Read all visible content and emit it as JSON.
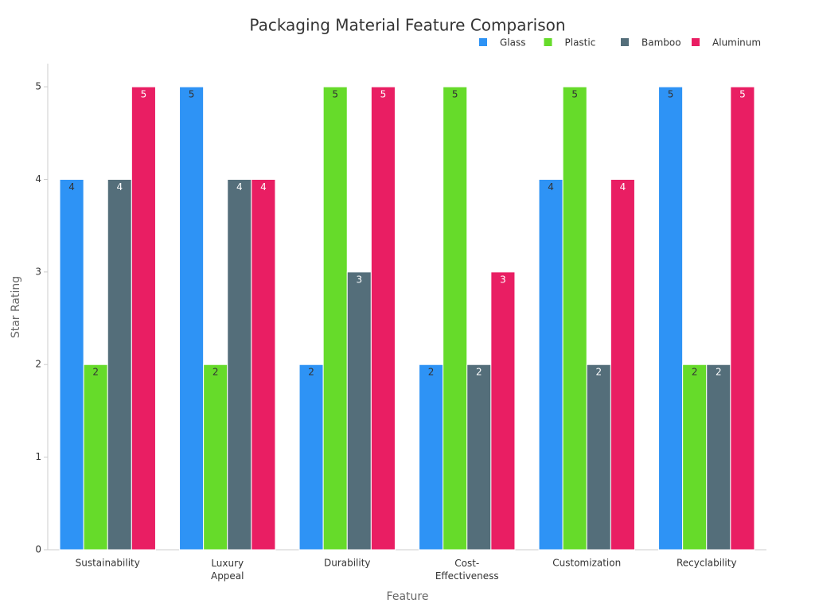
{
  "chart_data": {
    "type": "bar",
    "title": "Packaging Material Feature Comparison",
    "x_label": "Feature",
    "y_label": "Star Rating",
    "categories": [
      "Sustainability",
      "Luxury\nAppeal",
      "Durability",
      "Cost-\nEffectiveness",
      "Customization",
      "Recyclability"
    ],
    "series": [
      {
        "name": "Glass",
        "color": "#2E93F5",
        "values": [
          4,
          5,
          2,
          2,
          4,
          5
        ]
      },
      {
        "name": "Plastic",
        "color": "#66DB2A",
        "values": [
          2,
          2,
          5,
          5,
          5,
          2
        ]
      },
      {
        "name": "Bamboo",
        "color": "#546E7A",
        "values": [
          4,
          4,
          3,
          2,
          2,
          2
        ]
      },
      {
        "name": "Aluminum",
        "color": "#E91E63",
        "values": [
          5,
          4,
          5,
          3,
          4,
          5
        ]
      }
    ],
    "ylim": [
      0,
      5.25
    ],
    "yticks": [
      0,
      1,
      2,
      3,
      4,
      5
    ],
    "grid": false,
    "legend": "top-right"
  }
}
